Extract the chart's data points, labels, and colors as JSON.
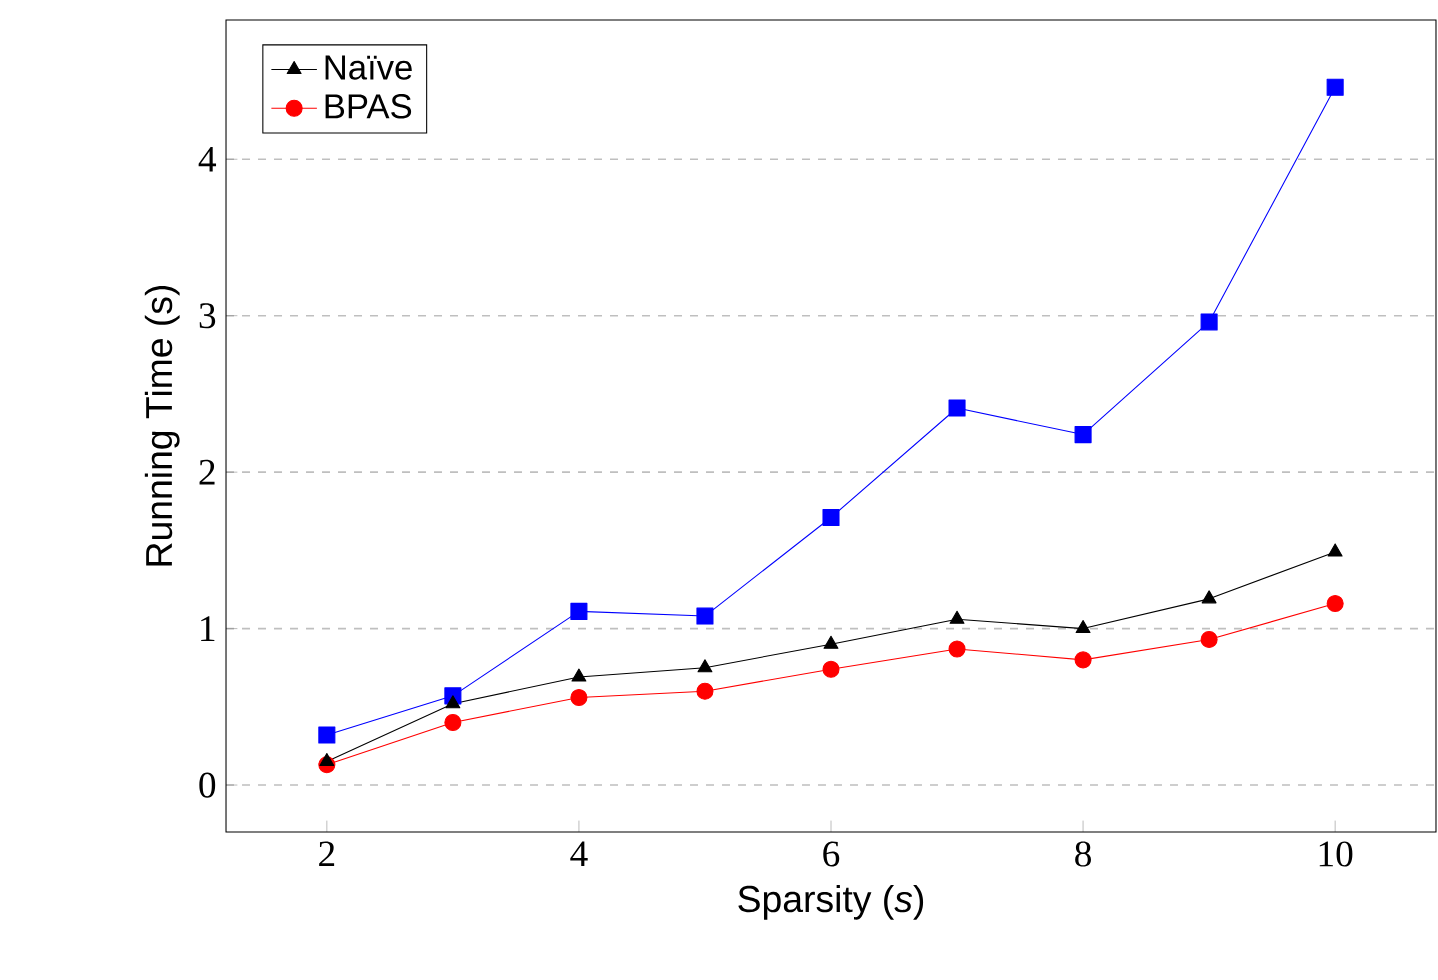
{
  "chart_data": {
    "type": "line",
    "xlabel": "Sparsity (*s*)",
    "ylabel": "Running Time (s)",
    "x": [
      2,
      3,
      4,
      5,
      6,
      7,
      8,
      9,
      10
    ],
    "series": [
      {
        "name": "Naïve",
        "color": "#000000",
        "marker": "triangle",
        "values": [
          0.15,
          0.52,
          0.69,
          0.75,
          0.9,
          1.06,
          1.0,
          1.19,
          1.49
        ]
      },
      {
        "name": "BPAS",
        "color": "#ff0000",
        "marker": "circle",
        "values": [
          0.13,
          0.4,
          0.56,
          0.6,
          0.74,
          0.87,
          0.8,
          0.93,
          1.16
        ]
      },
      {
        "color": "#0000ff",
        "marker": "square",
        "values": [
          0.32,
          0.57,
          1.11,
          1.08,
          1.71,
          2.41,
          2.24,
          2.96,
          4.46
        ]
      }
    ],
    "xlim": [
      1.2,
      10.8
    ],
    "ylim": [
      -0.3,
      4.89
    ],
    "xticks": [
      2,
      4,
      6,
      8,
      10
    ],
    "yticks": [
      0,
      1,
      2,
      3,
      4
    ],
    "grid": "y",
    "legend": "top left",
    "line_style": "solid"
  }
}
